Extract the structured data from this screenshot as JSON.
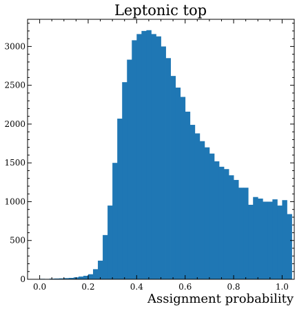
{
  "chart_data": {
    "type": "bar",
    "title": "Leptonic top",
    "xlabel": "Assignment probability",
    "ylabel": "",
    "xlim": [
      -0.05,
      1.05
    ],
    "ylim": [
      0,
      3350
    ],
    "bar_color": "#1f77b4",
    "bin_width": 0.02,
    "bin_start": 0.0,
    "values": [
      6,
      5,
      8,
      10,
      12,
      15,
      18,
      25,
      35,
      45,
      65,
      130,
      240,
      570,
      950,
      1500,
      2070,
      2540,
      2830,
      3080,
      3160,
      3200,
      3210,
      3160,
      3130,
      3000,
      2850,
      2620,
      2470,
      2350,
      2160,
      1990,
      1880,
      1780,
      1700,
      1620,
      1520,
      1450,
      1420,
      1340,
      1280,
      1180,
      1180,
      960,
      1060,
      1040,
      1000,
      1000,
      1030,
      950,
      1020,
      840
    ],
    "x_ticks": [
      0.0,
      0.2,
      0.4,
      0.6,
      0.8,
      1.0
    ],
    "x_tick_labels": [
      "0.0",
      "0.2",
      "0.4",
      "0.6",
      "0.8",
      "1.0"
    ],
    "y_ticks": [
      0,
      500,
      1000,
      1500,
      2000,
      2500,
      3000
    ],
    "y_tick_labels": [
      "0",
      "500",
      "1000",
      "1500",
      "2000",
      "2500",
      "3000"
    ],
    "grid": false,
    "legend": "none"
  }
}
